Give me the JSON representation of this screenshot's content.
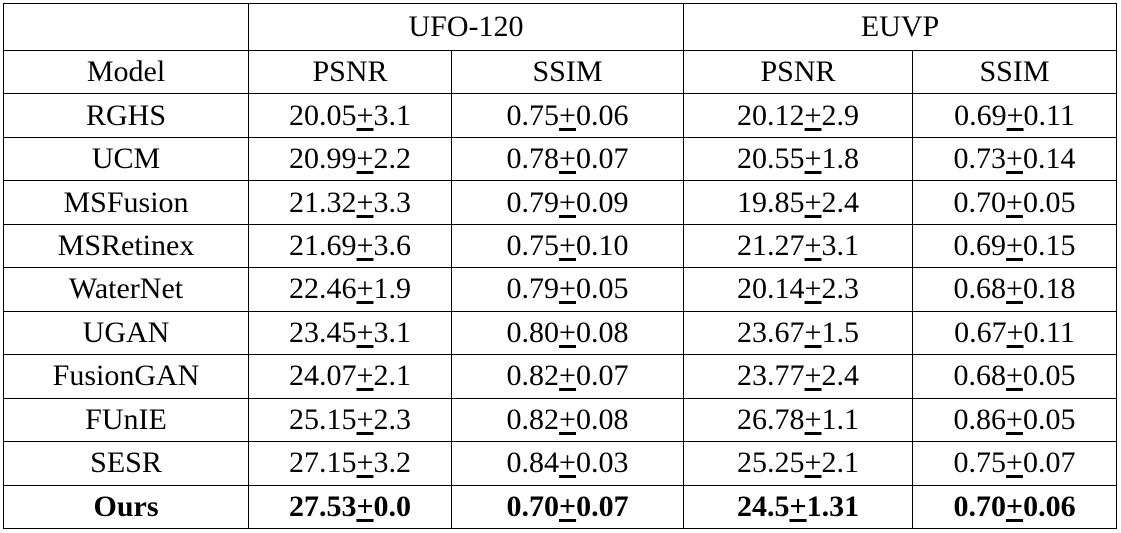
{
  "table": {
    "header_groups": [
      {
        "label": ""
      },
      {
        "label": "UFO-120"
      },
      {
        "label": "EUVP"
      }
    ],
    "columns": [
      "Model",
      "PSNR",
      "SSIM",
      "PSNR",
      "SSIM"
    ],
    "rows": [
      {
        "model": "RGHS",
        "cells": [
          {
            "v": "20.05",
            "pm": "+",
            "e": "3.1"
          },
          {
            "v": "0.75",
            "pm": "+",
            "e": "0.06"
          },
          {
            "v": "20.12",
            "pm": "+",
            "e": "2.9"
          },
          {
            "v": "0.69",
            "pm": "+",
            "e": "0.11"
          }
        ]
      },
      {
        "model": "UCM",
        "cells": [
          {
            "v": "20.99",
            "pm": "+",
            "e": "2.2"
          },
          {
            "v": "0.78",
            "pm": "+",
            "e": "0.07"
          },
          {
            "v": "20.55",
            "pm": "+",
            "e": "1.8"
          },
          {
            "v": "0.73",
            "pm": "+",
            "e": "0.14"
          }
        ]
      },
      {
        "model": "MSFusion",
        "cells": [
          {
            "v": "21.32",
            "pm": "+",
            "e": "3.3"
          },
          {
            "v": "0.79",
            "pm": "+",
            "e": "0.09"
          },
          {
            "v": "19.85",
            "pm": "+",
            "e": "2.4"
          },
          {
            "v": "0.70",
            "pm": "+",
            "e": "0.05"
          }
        ]
      },
      {
        "model": "MSRetinex",
        "cells": [
          {
            "v": "21.69",
            "pm": "+",
            "e": "3.6"
          },
          {
            "v": "0.75",
            "pm": "+",
            "e": "0.10"
          },
          {
            "v": "21.27",
            "pm": "+",
            "e": "3.1"
          },
          {
            "v": "0.69",
            "pm": "+",
            "e": "0.15"
          }
        ]
      },
      {
        "model": "WaterNet",
        "cells": [
          {
            "v": "22.46",
            "pm": "+",
            "e": "1.9"
          },
          {
            "v": "0.79",
            "pm": "+",
            "e": "0.05"
          },
          {
            "v": "20.14",
            "pm": "+",
            "e": "2.3"
          },
          {
            "v": "0.68",
            "pm": "+",
            "e": "0.18"
          }
        ]
      },
      {
        "model": "UGAN",
        "cells": [
          {
            "v": "23.45",
            "pm": "+",
            "e": "3.1"
          },
          {
            "v": "0.80",
            "pm": "+",
            "e": "0.08"
          },
          {
            "v": "23.67",
            "pm": "+",
            "e": "1.5"
          },
          {
            "v": "0.67",
            "pm": "+",
            "e": "0.11"
          }
        ]
      },
      {
        "model": "FusionGAN",
        "cells": [
          {
            "v": "24.07",
            "pm": "+",
            "e": "2.1"
          },
          {
            "v": "0.82",
            "pm": "+",
            "e": "0.07"
          },
          {
            "v": "23.77",
            "pm": "+",
            "e": "2.4"
          },
          {
            "v": "0.68",
            "pm": "+",
            "e": "0.05"
          }
        ]
      },
      {
        "model": "FUnIE",
        "cells": [
          {
            "v": "25.15",
            "pm": "+",
            "e": "2.3"
          },
          {
            "v": "0.82",
            "pm": "+",
            "e": "0.08"
          },
          {
            "v": "26.78",
            "pm": "+",
            "e": "1.1"
          },
          {
            "v": "0.86",
            "pm": "+",
            "e": "0.05"
          }
        ]
      },
      {
        "model": "SESR",
        "cells": [
          {
            "v": "27.15",
            "pm": "+",
            "e": "3.2"
          },
          {
            "v": "0.84",
            "pm": "+",
            "e": "0.03"
          },
          {
            "v": "25.25",
            "pm": "+",
            "e": "2.1"
          },
          {
            "v": "0.75",
            "pm": "+",
            "e": "0.07"
          }
        ]
      },
      {
        "model": "Ours",
        "bold": true,
        "cells": [
          {
            "v": "27.53",
            "pm": "+",
            "e": "0.0"
          },
          {
            "v": "0.70",
            "pm": "+",
            "e": "0.07"
          },
          {
            "v": "24.5",
            "pm": "+",
            "e": "1.31"
          },
          {
            "v": "0.70",
            "pm": "+",
            "e": "0.06"
          }
        ]
      }
    ]
  }
}
